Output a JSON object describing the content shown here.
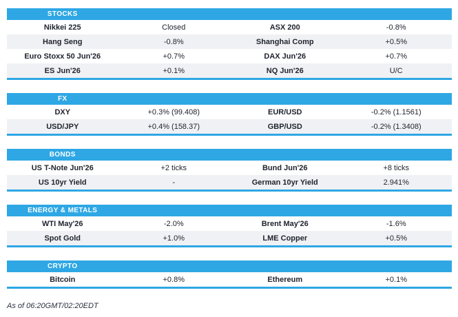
{
  "colors": {
    "accent": "#2EA7E4",
    "row_alt": "#F0F1F4",
    "text": "#20252F",
    "header_text": "#FFFFFF"
  },
  "footer": "As of 06:20GMT/02:20EDT",
  "chart_data": [
    {
      "type": "table",
      "title": "STOCKS",
      "rows": [
        [
          "Nikkei 225",
          "Closed",
          "ASX 200",
          "-0.8%"
        ],
        [
          "Hang Seng",
          "-0.8%",
          "Shanghai Comp",
          "+0.5%"
        ],
        [
          "Euro Stoxx 50 Jun'26",
          "+0.7%",
          "DAX Jun'26",
          "+0.7%"
        ],
        [
          "ES Jun'26",
          "+0.1%",
          "NQ Jun'26",
          "U/C"
        ]
      ]
    },
    {
      "type": "table",
      "title": "FX",
      "rows": [
        [
          "DXY",
          "+0.3% (99.408)",
          "EUR/USD",
          "-0.2% (1.1561)"
        ],
        [
          "USD/JPY",
          "+0.4% (158.37)",
          "GBP/USD",
          "-0.2% (1.3408)"
        ]
      ]
    },
    {
      "type": "table",
      "title": "BONDS",
      "rows": [
        [
          "US T-Note Jun'26",
          "+2 ticks",
          "Bund Jun'26",
          "+8 ticks"
        ],
        [
          "US 10yr Yield",
          "-",
          "German 10yr Yield",
          "2.941%"
        ]
      ]
    },
    {
      "type": "table",
      "title": "ENERGY & METALS",
      "rows": [
        [
          "WTI May'26",
          "-2.0%",
          "Brent May'26",
          "-1.6%"
        ],
        [
          "Spot Gold",
          "+1.0%",
          "LME Copper",
          "+0.5%"
        ]
      ]
    },
    {
      "type": "table",
      "title": "CRYPTO",
      "rows": [
        [
          "Bitcoin",
          "+0.8%",
          "Ethereum",
          "+0.1%"
        ]
      ]
    }
  ]
}
